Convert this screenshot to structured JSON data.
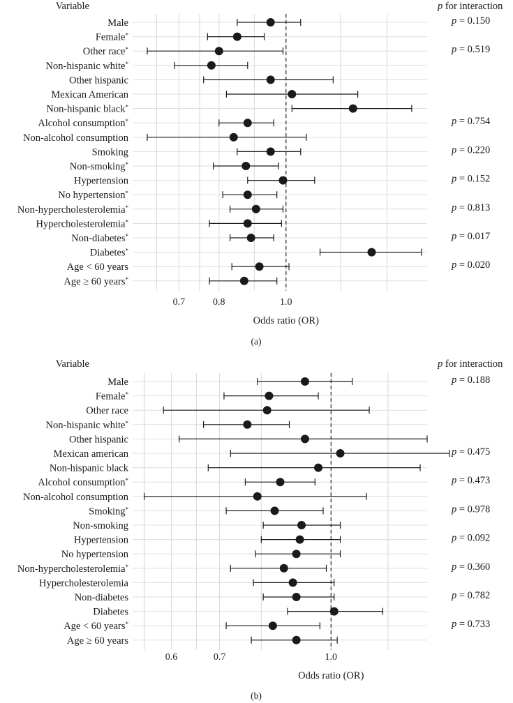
{
  "chart_data": [
    {
      "type": "forest",
      "panel_label": "(a)",
      "variable_header": "Variable",
      "p_header_italic": "p",
      "p_header_rest": " for interaction",
      "xlabel": "Odds ratio (OR)",
      "xscale": "log",
      "xlim": [
        0.6,
        1.6
      ],
      "ticks": [
        0.7,
        0.8,
        1.0
      ],
      "tick_labels": [
        "0.7",
        "0.8",
        "1.0"
      ],
      "reference": 1.0,
      "rows": [
        {
          "label": "Male",
          "star": false,
          "or": 0.95,
          "lo": 0.85,
          "hi": 1.05
        },
        {
          "label": "Female",
          "star": true,
          "or": 0.85,
          "lo": 0.77,
          "hi": 0.93
        },
        {
          "label": "Other race",
          "star": true,
          "or": 0.8,
          "lo": 0.63,
          "hi": 0.99
        },
        {
          "label": "Non-hispanic white",
          "star": true,
          "or": 0.78,
          "lo": 0.69,
          "hi": 0.88
        },
        {
          "label": "Other hispanic",
          "star": false,
          "or": 0.95,
          "lo": 0.76,
          "hi": 1.17
        },
        {
          "label": "Mexican American",
          "star": false,
          "or": 1.02,
          "lo": 0.82,
          "hi": 1.27
        },
        {
          "label": "Non-hispanic black",
          "star": true,
          "or": 1.25,
          "lo": 1.02,
          "hi": 1.52
        },
        {
          "label": "Alcohol consumption",
          "star": true,
          "or": 0.88,
          "lo": 0.8,
          "hi": 0.96
        },
        {
          "label": "Non-alcohol consumption",
          "star": false,
          "or": 0.84,
          "lo": 0.63,
          "hi": 1.07
        },
        {
          "label": "Smoking",
          "star": false,
          "or": 0.95,
          "lo": 0.85,
          "hi": 1.05
        },
        {
          "label": "Non-smoking",
          "star": true,
          "or": 0.875,
          "lo": 0.785,
          "hi": 0.975
        },
        {
          "label": "Hypertension",
          "star": false,
          "or": 0.99,
          "lo": 0.88,
          "hi": 1.1
        },
        {
          "label": "No hypertension",
          "star": true,
          "or": 0.88,
          "lo": 0.81,
          "hi": 0.97
        },
        {
          "label": "Non-hypercholesterolemia",
          "star": true,
          "or": 0.905,
          "lo": 0.83,
          "hi": 0.99
        },
        {
          "label": "Hypercholesterolemia",
          "star": true,
          "or": 0.88,
          "lo": 0.775,
          "hi": 0.985
        },
        {
          "label": "Non-diabetes",
          "star": true,
          "or": 0.89,
          "lo": 0.83,
          "hi": 0.96
        },
        {
          "label": "Diabetes",
          "star": true,
          "or": 1.33,
          "lo": 1.12,
          "hi": 1.57
        },
        {
          "label": "Age < 60 years",
          "star": false,
          "or": 0.915,
          "lo": 0.835,
          "hi": 1.01
        },
        {
          "label": "Age ≥ 60 years",
          "star": true,
          "or": 0.87,
          "lo": 0.775,
          "hi": 0.97
        }
      ],
      "p_values": [
        {
          "row": 0,
          "text": " = 0.150"
        },
        {
          "row": 2,
          "text": " = 0.519"
        },
        {
          "row": 7,
          "text": " = 0.754"
        },
        {
          "row": 9,
          "text": " = 0.220"
        },
        {
          "row": 11,
          "text": " = 0.152"
        },
        {
          "row": 13,
          "text": " = 0.813"
        },
        {
          "row": 15,
          "text": " = 0.017"
        },
        {
          "row": 17,
          "text": " = 0.020"
        }
      ],
      "p_prefix": "p"
    },
    {
      "type": "forest",
      "panel_label": "(b)",
      "variable_header": "Variable",
      "p_header_italic": "p",
      "p_header_rest": " for interaction",
      "xlabel": "Odds ratio (OR)",
      "xscale": "log",
      "xlim": [
        0.53,
        1.36
      ],
      "ticks": [
        0.6,
        0.7,
        1.0
      ],
      "tick_labels": [
        "0.6",
        "0.7",
        "1.0"
      ],
      "reference": 1.0,
      "rows": [
        {
          "label": "Male",
          "star": false,
          "or": 0.92,
          "lo": 0.79,
          "hi": 1.07
        },
        {
          "label": "Female",
          "star": true,
          "or": 0.82,
          "lo": 0.71,
          "hi": 0.96
        },
        {
          "label": "Other race",
          "star": false,
          "or": 0.815,
          "lo": 0.585,
          "hi": 1.13
        },
        {
          "label": "Non-hispanic white",
          "star": true,
          "or": 0.765,
          "lo": 0.665,
          "hi": 0.875
        },
        {
          "label": "Other hispanic",
          "star": false,
          "or": 0.92,
          "lo": 0.615,
          "hi": 1.36
        },
        {
          "label": "Mexican american",
          "star": false,
          "or": 1.03,
          "lo": 0.725,
          "hi": 1.46
        },
        {
          "label": "Non-hispanic black",
          "star": false,
          "or": 0.96,
          "lo": 0.675,
          "hi": 1.33
        },
        {
          "label": "Alcohol consumption",
          "star": true,
          "or": 0.85,
          "lo": 0.76,
          "hi": 0.95
        },
        {
          "label": "Non-alcohol consumption",
          "star": false,
          "or": 0.79,
          "lo": 0.55,
          "hi": 1.12
        },
        {
          "label": "Smoking",
          "star": true,
          "or": 0.835,
          "lo": 0.715,
          "hi": 0.975
        },
        {
          "label": "Non-smoking",
          "star": false,
          "or": 0.91,
          "lo": 0.805,
          "hi": 1.03
        },
        {
          "label": "Hypertension",
          "star": false,
          "or": 0.905,
          "lo": 0.8,
          "hi": 1.03
        },
        {
          "label": "No hypertension",
          "star": false,
          "or": 0.895,
          "lo": 0.785,
          "hi": 1.03
        },
        {
          "label": "Non-hypercholesterolemia",
          "star": true,
          "or": 0.86,
          "lo": 0.725,
          "hi": 0.985
        },
        {
          "label": "Hypercholesterolemia",
          "star": false,
          "or": 0.885,
          "lo": 0.78,
          "hi": 1.01
        },
        {
          "label": "Non-diabetes",
          "star": false,
          "or": 0.895,
          "lo": 0.805,
          "hi": 1.01
        },
        {
          "label": "Diabetes",
          "star": false,
          "or": 1.01,
          "lo": 0.87,
          "hi": 1.18
        },
        {
          "label": "Age < 60 years",
          "star": true,
          "or": 0.83,
          "lo": 0.715,
          "hi": 0.965
        },
        {
          "label": "Age ≥ 60 years",
          "star": false,
          "or": 0.895,
          "lo": 0.775,
          "hi": 1.02
        }
      ],
      "p_values": [
        {
          "row": 0,
          "text": " = 0.188"
        },
        {
          "row": 5,
          "text": " = 0.475"
        },
        {
          "row": 7,
          "text": " = 0.473"
        },
        {
          "row": 9,
          "text": " = 0.978"
        },
        {
          "row": 11,
          "text": " = 0.092"
        },
        {
          "row": 13,
          "text": " = 0.360"
        },
        {
          "row": 15,
          "text": " = 0.782"
        },
        {
          "row": 17,
          "text": " = 0.733"
        }
      ],
      "p_prefix": "p"
    }
  ],
  "colors": {
    "grid": "#dddddd",
    "ink": "#1a1a1a",
    "background": "#ffffff"
  },
  "star_symbol": "*"
}
